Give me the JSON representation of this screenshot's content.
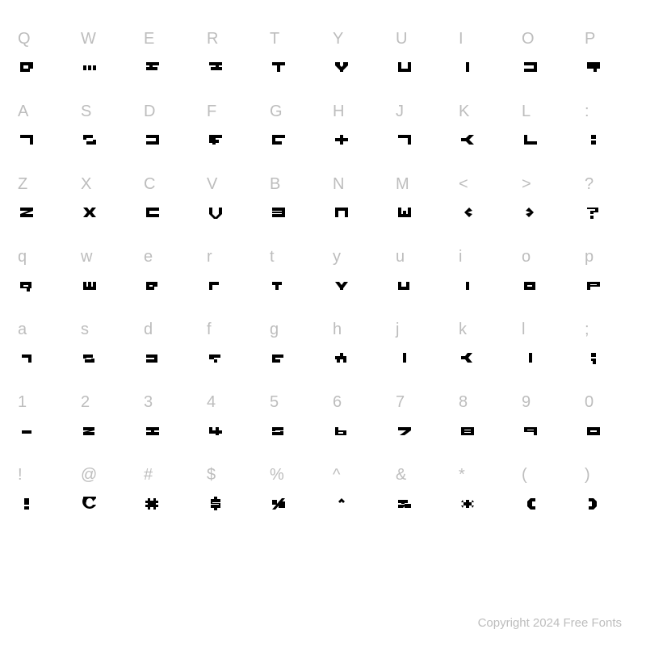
{
  "grid": {
    "background_color": "#ffffff",
    "label_color": "#bdbdbd",
    "glyph_color": "#000000",
    "label_fontsize": 20,
    "glyph_fontsize": 20,
    "columns": 10,
    "rows": [
      {
        "labels": [
          "Q",
          "W",
          "E",
          "R",
          "T",
          "Y",
          "U",
          "I",
          "O",
          "P"
        ],
        "glyphs": [
          "M2 2 H18 V10 H14 V14 H2 Z M6 6 V10 H12 V6 Z",
          "M2 6 H6 V12 H2 Z M8 6 H12 V12 H8 Z M14 6 H18 V12 H14 Z",
          "M2 2 H18 V6 H10 V8 H16 V12 H2 V8 H6 V6 H2 Z",
          "M2 2 H18 V6 H14 V8 H18 V12 H4 V8 H10 V6 H2 Z",
          "M2 2 H18 V6 H12 V14 H8 V6 H2 Z",
          "M2 2 H8 V6 L10 8 L12 6 V2 H18 V6 L12 12 V14 H8 V12 L2 6 Z",
          "M2 2 H6 V10 H14 V2 H18 V14 H2 Z",
          "M8 2 H12 V14 H8 Z",
          "M2 2 H18 V14 H2 V10 H14 V6 H2 Z",
          "M2 2 H18 V10 H14 V14 H10 V10 H2 Z"
        ]
      },
      {
        "labels": [
          "A",
          "S",
          "D",
          "F",
          "G",
          "H",
          "J",
          "K",
          "L",
          ":"
        ],
        "glyphs": [
          "M2 2 H18 V14 H14 V6 H2 Z",
          "M2 2 H14 V6 H6 V8 H18 V14 H6 V10 H14 V8 H2 Z",
          "M2 2 H18 V14 H2 V10 H14 V6 H2 Z",
          "M2 2 H18 V6 H10 V8 H14 V12 H10 V14 H6 V12 H2 Z",
          "M2 2 H18 V6 H6 V10 H14 V14 H2 V10 H2 Z",
          "M2 6 H8 V2 H12 V6 H18 V10 H12 V14 H8 V10 H2 Z",
          "M2 2 H18 V14 H14 V6 H2 Z",
          "M2 6 H8 L12 2 H18 L12 8 L18 14 H12 L8 10 H2 Z",
          "M2 2 H6 V10 H18 V14 H2 Z",
          "M7 2 H13 V7 H7 Z M7 9 H13 V14 H7 Z"
        ]
      },
      {
        "labels": [
          "Z",
          "X",
          "C",
          "V",
          "B",
          "N",
          "M",
          "<",
          ">",
          "?"
        ],
        "glyphs": [
          "M2 2 H18 V6 L8 10 H18 V14 H2 V10 L12 6 H2 Z",
          "M2 2 H7 L10 6 L13 2 H18 L13 8 L18 14 H13 L10 10 L7 14 H2 L7 8 Z",
          "M2 2 H18 V6 H6 V10 H18 V14 H2 Z",
          "M2 2 H6 V10 L10 14 L14 10 V2 H18 V10 L12 16 H8 L2 10 Z",
          "M2 2 H18 V14 H2 V10 H14 V9 H2 V7 H14 V6 H2 Z",
          "M2 2 H18 V14 H14 V6 H6 V14 H2 Z",
          "M2 2 H6 V10 H8 V6 H12 V10 H14 V2 H18 V14 H2 Z",
          "M12 2 L6 8 L12 14 L16 10 L10 8 L16 6 Z",
          "M8 2 L14 8 L8 14 L4 10 L10 8 L4 6 Z",
          "M2 2 H16 V8 H10 V10 H6 V6 H12 V4 H2 Z M6 12 H10 V16 H6 Z"
        ]
      },
      {
        "labels": [
          "q",
          "w",
          "e",
          "r",
          "t",
          "y",
          "u",
          "i",
          "o",
          "p"
        ],
        "glyphs": [
          "M2 4 H16 V12 H14 V16 H10 V12 H2 Z M6 8 V10 H12 V8 Z",
          "M2 4 H6 V10 H8 V4 H12 V10 H14 V4 H18 V14 H2 Z",
          "M2 4 H16 V10 H12 V14 H2 Z M6 8 V10 H10 V8 Z",
          "M2 4 H14 V8 H6 V14 H2 Z",
          "M2 4 H14 V8 H10 V14 H6 V8 H2 Z",
          "M2 4 H7 L10 8 L13 4 H18 L12 12 V14 H8 V12 Z",
          "M2 4 H6 V10 H12 V4 H16 V14 H2 Z",
          "M8 4 H12 V14 H8 Z",
          "M2 4 H16 V14 H2 Z M6 8 V10 H12 V8 Z",
          "M2 4 H18 V10 H6 V14 H2 Z M6 7 V8 H14 V7 Z"
        ]
      },
      {
        "labels": [
          "a",
          "s",
          "d",
          "f",
          "g",
          "h",
          "j",
          "k",
          "l",
          ";"
        ],
        "glyphs": [
          "M4 4 H16 V14 H12 V8 H4 Z",
          "M2 4 H14 V8 H6 V9 H16 V14 H4 V10 H12 V9 H2 Z",
          "M2 4 H16 V14 H2 V10 H12 V8 H2 Z",
          "M2 4 H16 V8 H8 V10 H12 V14 H8 V10 H2 Z",
          "M2 4 H16 V8 H6 V10 H12 V14 H2 Z",
          "M2 6 H8 V2 H12 V6 H16 V14 H12 V10 H8 V14 H4 V10 H2 Z",
          "M8 2 H12 V14 H8 Z",
          "M2 6 H7 L10 2 H16 L11 8 L16 14 H10 L7 10 H2 Z",
          "M8 2 H12 V14 H8 Z",
          "M7 2 H13 V7 H7 Z M7 9 H13 V16 H9 V12 H7 Z"
        ]
      },
      {
        "labels": [
          "1",
          "2",
          "3",
          "4",
          "5",
          "6",
          "7",
          "8",
          "9",
          "0"
        ],
        "glyphs": [
          "M4 8 H16 V12 H4 Z",
          "M2 4 H16 V8 L8 10 H16 V14 H2 V10 L10 8 H2 Z",
          "M2 4 H18 V8 H12 V10 H18 V14 H2 V10 H8 V8 H2 Z",
          "M2 4 H6 V8 H10 V4 H14 V8 H18 V12 H14 V14 H10 V12 H2 Z",
          "M2 4 H16 V8 H6 V9 H16 V14 H2 V10 H12 V9 H2 Z",
          "M2 4 H6 V8 H16 V14 H2 Z M6 10 V12 H12 V10 Z",
          "M2 4 H18 V8 L10 14 H4 L12 8 H2 Z",
          "M2 4 H18 V14 H2 Z M6 7 V8 H14 V7 Z M6 10 V11 H14 V10 Z",
          "M2 4 H18 V14 H14 V10 H2 Z M6 7 V8 H14 V7 Z",
          "M2 4 H18 V14 H2 Z M6 8 V10 H14 V8 Z"
        ]
      },
      {
        "labels": [
          "!",
          "@",
          "#",
          "$",
          "%",
          "^",
          "&",
          "*",
          "(",
          ")"
        ],
        "glyphs": [
          "M7 2 H13 V10 H7 Z M7 12 H13 V16 H7 Z",
          "M2 2 A8 8 0 1 0 18 10 L14 10 A4 4 0 1 1 6 6 A4 4 0 1 1 14 6 L18 2 A8 8 0 0 0 2 2 Z",
          "M4 2 H7 V5 H11 V2 H14 V5 H17 V8 H14 V10 H17 V13 H14 V16 H11 V13 H7 V16 H4 V13 H1 V10 H4 V8 H1 V5 H4 Z",
          "M8 0 H12 V3 H16 V7 H6 V8 H16 V14 H12 V17 H8 V14 H4 V10 H14 V9 H4 V3 H8 Z",
          "M2 4 H8 V10 H2 Z M10 6 H18 V14 H10 Z M14 2 L18 2 L6 16 L2 16 Z",
          "M6 6 L10 2 L14 6 L12 8 L10 6 L8 8 Z",
          "M2 4 H14 V8 H6 V9 H18 V14 H10 V12 L8 14 H2 V10 H10 V8 H2 Z",
          "M8 4 H12 V7 H15 V11 H12 V14 H8 V11 H5 V7 H8 Z M2 7 H5 L4 4 Z M15 7 H18 L16 4 Z M2 11 H5 L4 14 Z M15 11 H18 L16 14 Z",
          "M10 2 H16 V6 H12 V12 H16 V16 H10 L6 12 V6 Z",
          "M4 2 H10 L14 6 V12 L10 16 H4 V12 H8 V6 H4 Z"
        ]
      }
    ]
  },
  "copyright": "Copyright 2024 Free Fonts"
}
